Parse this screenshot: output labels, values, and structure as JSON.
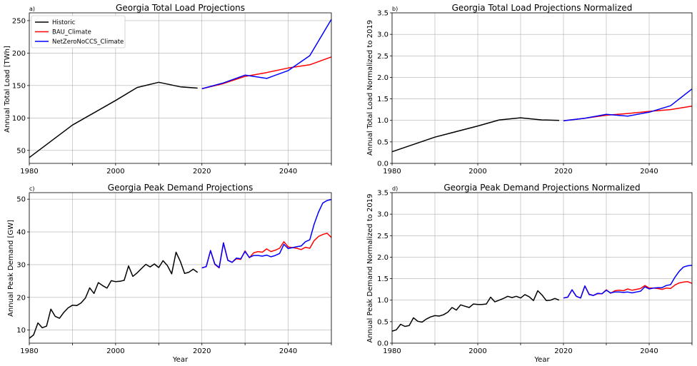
{
  "chart_data": [
    {
      "type": "line",
      "panel_label": "a)",
      "title": "Georgia Total Load Projections",
      "xlabel": "",
      "ylabel": "Annual Total Load [TWh]",
      "xlim": [
        1980,
        2050
      ],
      "ylim": [
        30,
        262
      ],
      "xticks": [
        1980,
        2000,
        2020,
        2040
      ],
      "yticks": [
        50,
        100,
        150,
        200,
        250
      ],
      "grid": true,
      "legend": "top-left",
      "series": [
        {
          "name": "Historic",
          "color": "#000000",
          "x": [
            1980,
            1990,
            2000,
            2005,
            2010,
            2015,
            2019
          ],
          "y": [
            39,
            89,
            127,
            147,
            155,
            148,
            146
          ]
        },
        {
          "name": "BAU_Climate",
          "color": "#ff0000",
          "x": [
            2020,
            2025,
            2030,
            2035,
            2040,
            2045,
            2050
          ],
          "y": [
            145,
            153,
            164,
            170,
            177,
            182,
            194
          ]
        },
        {
          "name": "NetZeroNoCCS_Climate",
          "color": "#0000ff",
          "x": [
            2020,
            2025,
            2030,
            2035,
            2040,
            2045,
            2050
          ],
          "y": [
            145,
            154,
            166,
            161,
            173,
            196,
            252
          ]
        }
      ]
    },
    {
      "type": "line",
      "panel_label": "b)",
      "title": "Georgia Total Load Projections Normalized",
      "xlabel": "",
      "ylabel": "Annual Total Load Normalized to 2019",
      "xlim": [
        1980,
        2050
      ],
      "ylim": [
        0,
        3.5
      ],
      "xticks": [
        1980,
        2000,
        2020,
        2040
      ],
      "yticks": [
        0.0,
        0.5,
        1.0,
        1.5,
        2.0,
        2.5,
        3.0,
        3.5
      ],
      "grid": true,
      "series": [
        {
          "name": "Historic",
          "color": "#000000",
          "x": [
            1980,
            1990,
            2000,
            2005,
            2010,
            2015,
            2019
          ],
          "y": [
            0.27,
            0.61,
            0.87,
            1.01,
            1.06,
            1.01,
            1.0
          ]
        },
        {
          "name": "BAU_Climate",
          "color": "#ff0000",
          "x": [
            2020,
            2025,
            2030,
            2035,
            2040,
            2045,
            2050
          ],
          "y": [
            0.99,
            1.05,
            1.12,
            1.16,
            1.21,
            1.25,
            1.33
          ]
        },
        {
          "name": "NetZeroNoCCS_Climate",
          "color": "#0000ff",
          "x": [
            2020,
            2025,
            2030,
            2035,
            2040,
            2045,
            2050
          ],
          "y": [
            0.99,
            1.05,
            1.14,
            1.1,
            1.19,
            1.34,
            1.73
          ]
        }
      ]
    },
    {
      "type": "line",
      "panel_label": "c)",
      "title": "Georgia Peak Demand Projections",
      "xlabel": "Year",
      "ylabel": "Annual Peak Demand [GW]",
      "xlim": [
        1980,
        2050
      ],
      "ylim": [
        6,
        52
      ],
      "xticks": [
        1980,
        2000,
        2020,
        2040
      ],
      "yticks": [
        10,
        20,
        30,
        40,
        50
      ],
      "grid": true,
      "series": [
        {
          "name": "Historic",
          "color": "#000000",
          "x": [
            1980,
            1981,
            1982,
            1983,
            1984,
            1985,
            1986,
            1987,
            1988,
            1989,
            1990,
            1991,
            1992,
            1993,
            1994,
            1995,
            1996,
            1997,
            1998,
            1999,
            2000,
            2001,
            2002,
            2003,
            2004,
            2005,
            2006,
            2007,
            2008,
            2009,
            2010,
            2011,
            2012,
            2013,
            2014,
            2015,
            2016,
            2017,
            2018,
            2019
          ],
          "y": [
            7.5,
            8.5,
            12.2,
            10.7,
            11.2,
            16.4,
            14.2,
            13.6,
            15.4,
            16.8,
            17.6,
            17.5,
            18.3,
            19.8,
            22.9,
            21.2,
            24.5,
            23.6,
            22.8,
            25.1,
            24.8,
            24.9,
            25.2,
            29.6,
            26.4,
            27.5,
            28.8,
            30.1,
            29.3,
            30.2,
            29.1,
            31.2,
            29.7,
            27.2,
            33.8,
            31.0,
            27.3,
            27.7,
            28.6,
            27.6
          ]
        },
        {
          "name": "BAU_Climate",
          "color": "#ff0000",
          "x": [
            2020,
            2021,
            2022,
            2023,
            2024,
            2025,
            2026,
            2027,
            2028,
            2029,
            2030,
            2031,
            2032,
            2033,
            2034,
            2035,
            2036,
            2037,
            2038,
            2039,
            2040,
            2041,
            2042,
            2043,
            2044,
            2045,
            2046,
            2047,
            2048,
            2049,
            2050
          ],
          "y": [
            29.0,
            29.4,
            34.3,
            30.1,
            29.0,
            36.7,
            31.4,
            30.7,
            31.8,
            31.6,
            34.2,
            32.1,
            33.6,
            34.0,
            33.8,
            34.8,
            34.0,
            34.4,
            35.0,
            37.0,
            35.4,
            35.2,
            35.0,
            34.6,
            35.3,
            35.0,
            37.3,
            38.6,
            39.2,
            39.6,
            38.3
          ]
        },
        {
          "name": "NetZeroNoCCS_Climate",
          "color": "#0000ff",
          "x": [
            2020,
            2021,
            2022,
            2023,
            2024,
            2025,
            2026,
            2027,
            2028,
            2029,
            2030,
            2031,
            2032,
            2033,
            2034,
            2035,
            2036,
            2037,
            2038,
            2039,
            2040,
            2041,
            2042,
            2043,
            2044,
            2045,
            2046,
            2047,
            2048,
            2049,
            2050
          ],
          "y": [
            29.0,
            29.4,
            34.3,
            30.2,
            29.1,
            36.6,
            31.3,
            30.7,
            32.0,
            31.8,
            34.0,
            32.2,
            32.8,
            32.8,
            32.6,
            32.9,
            32.4,
            32.8,
            33.4,
            36.2,
            34.9,
            35.2,
            35.5,
            35.7,
            37.0,
            37.6,
            42.3,
            46.0,
            48.8,
            49.6,
            49.9
          ]
        }
      ]
    },
    {
      "type": "line",
      "panel_label": "d)",
      "title": "Georgia Peak Demand Projections Normalized",
      "xlabel": "Year",
      "ylabel": "Annual Peak Demand Normalized to 2019",
      "xlim": [
        1980,
        2050
      ],
      "ylim": [
        0,
        3.5
      ],
      "xticks": [
        1980,
        2000,
        2020,
        2040
      ],
      "yticks": [
        0.0,
        0.5,
        1.0,
        1.5,
        2.0,
        2.5,
        3.0,
        3.5
      ],
      "grid": true,
      "series": [
        {
          "name": "Historic",
          "color": "#000000",
          "x": [
            1980,
            1981,
            1982,
            1983,
            1984,
            1985,
            1986,
            1987,
            1988,
            1989,
            1990,
            1991,
            1992,
            1993,
            1994,
            1995,
            1996,
            1997,
            1998,
            1999,
            2000,
            2001,
            2002,
            2003,
            2004,
            2005,
            2006,
            2007,
            2008,
            2009,
            2010,
            2011,
            2012,
            2013,
            2014,
            2015,
            2016,
            2017,
            2018,
            2019
          ],
          "y": [
            0.28,
            0.31,
            0.44,
            0.39,
            0.41,
            0.59,
            0.51,
            0.49,
            0.56,
            0.61,
            0.64,
            0.63,
            0.66,
            0.72,
            0.83,
            0.77,
            0.89,
            0.86,
            0.83,
            0.91,
            0.9,
            0.9,
            0.91,
            1.07,
            0.96,
            1.0,
            1.04,
            1.09,
            1.06,
            1.09,
            1.05,
            1.13,
            1.08,
            0.99,
            1.22,
            1.12,
            0.99,
            1.0,
            1.04,
            1.0
          ]
        },
        {
          "name": "BAU_Climate",
          "color": "#ff0000",
          "x": [
            2020,
            2021,
            2022,
            2023,
            2024,
            2025,
            2026,
            2027,
            2028,
            2029,
            2030,
            2031,
            2032,
            2033,
            2034,
            2035,
            2036,
            2037,
            2038,
            2039,
            2040,
            2041,
            2042,
            2043,
            2044,
            2045,
            2046,
            2047,
            2048,
            2049,
            2050
          ],
          "y": [
            1.05,
            1.07,
            1.24,
            1.09,
            1.05,
            1.33,
            1.14,
            1.11,
            1.15,
            1.15,
            1.24,
            1.16,
            1.22,
            1.23,
            1.22,
            1.26,
            1.23,
            1.25,
            1.27,
            1.34,
            1.28,
            1.28,
            1.27,
            1.25,
            1.28,
            1.27,
            1.35,
            1.4,
            1.42,
            1.43,
            1.39
          ]
        },
        {
          "name": "NetZeroNoCCS_Climate",
          "color": "#0000ff",
          "x": [
            2020,
            2021,
            2022,
            2023,
            2024,
            2025,
            2026,
            2027,
            2028,
            2029,
            2030,
            2031,
            2032,
            2033,
            2034,
            2035,
            2036,
            2037,
            2038,
            2039,
            2040,
            2041,
            2042,
            2043,
            2044,
            2045,
            2046,
            2047,
            2048,
            2049,
            2050
          ],
          "y": [
            1.05,
            1.07,
            1.24,
            1.09,
            1.05,
            1.33,
            1.13,
            1.11,
            1.16,
            1.15,
            1.23,
            1.17,
            1.19,
            1.19,
            1.18,
            1.19,
            1.17,
            1.19,
            1.21,
            1.31,
            1.26,
            1.28,
            1.29,
            1.29,
            1.34,
            1.36,
            1.53,
            1.67,
            1.77,
            1.8,
            1.81
          ]
        }
      ]
    }
  ]
}
